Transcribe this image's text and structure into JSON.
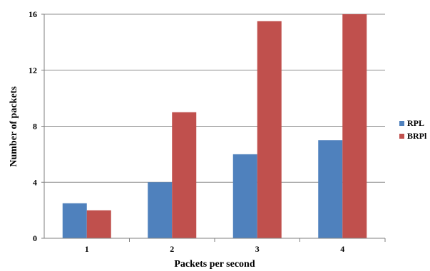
{
  "chart_data": {
    "type": "bar",
    "title": "",
    "xlabel": "Packets per second",
    "ylabel": "Number of packets",
    "categories": [
      "1",
      "2",
      "3",
      "4"
    ],
    "series": [
      {
        "name": "RPL",
        "values": [
          2.5,
          4,
          6,
          7
        ],
        "color": "#4F81BD"
      },
      {
        "name": "BRPL",
        "values": [
          2,
          9,
          15.5,
          16
        ],
        "color": "#C0504D"
      }
    ],
    "ylim": [
      0,
      16
    ],
    "yticks": [
      "0",
      "4",
      "8",
      "12",
      "16"
    ],
    "grid": true,
    "legend_position": "right",
    "legend_labels": [
      "RPL",
      "BRPl"
    ]
  }
}
